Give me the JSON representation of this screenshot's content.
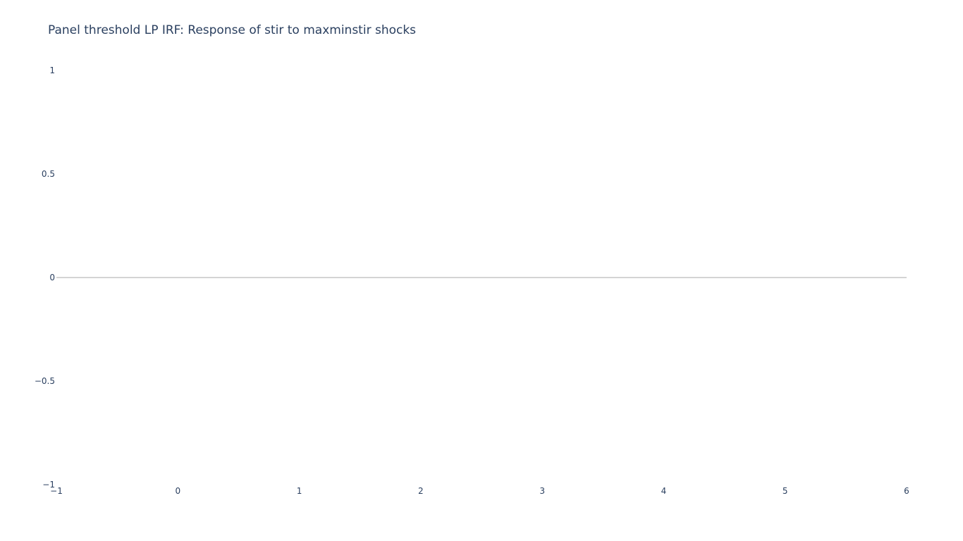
{
  "chart_data": {
    "type": "line",
    "title": "Panel threshold LP IRF: Response of stir to maxminstir shocks",
    "xlabel": "",
    "ylabel": "",
    "xlim": [
      -1,
      6
    ],
    "ylim": [
      -1,
      1
    ],
    "x_ticks": [
      -1,
      0,
      1,
      2,
      3,
      4,
      5,
      6
    ],
    "x_tick_labels": [
      "−1",
      "0",
      "1",
      "2",
      "3",
      "4",
      "5",
      "6"
    ],
    "y_ticks": [
      1,
      0.5,
      0,
      -0.5,
      -1
    ],
    "y_tick_labels": [
      "1",
      "0.5",
      "0",
      "−0.5",
      "−1"
    ],
    "zero_line": true,
    "grid": false,
    "series": []
  }
}
